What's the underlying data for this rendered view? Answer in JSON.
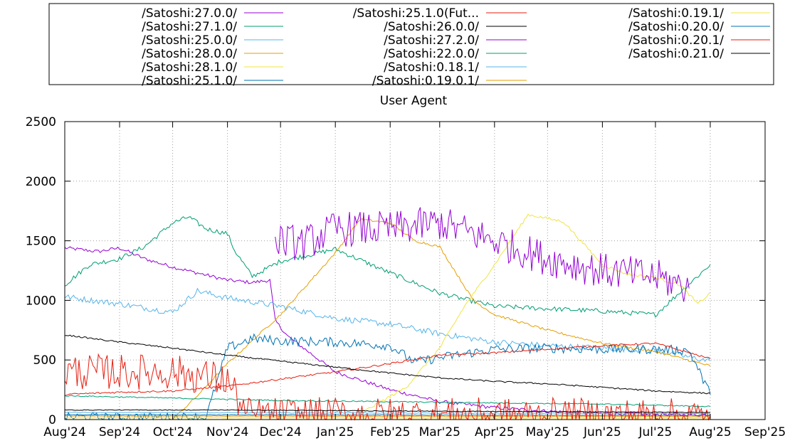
{
  "chart_data": {
    "type": "line",
    "title": "User Agent",
    "xlabel": "",
    "ylabel": "",
    "ylim": [
      0,
      2500
    ],
    "yticks": [
      0,
      500,
      1000,
      1500,
      2000,
      2500
    ],
    "xlim": [
      "2024-08-01",
      "2025-09-01"
    ],
    "xticks": [
      "Aug'24",
      "Sep'24",
      "Oct'24",
      "Nov'24",
      "Dec'24",
      "Jan'25",
      "Feb'25",
      "Mar'25",
      "Apr'25",
      "May'25",
      "Jun'25",
      "Jul'25",
      "Aug'25",
      "Sep'25"
    ],
    "grid": true,
    "legend_position": "top",
    "series": [
      {
        "name": "/Satoshi:27.0.0/",
        "color": "#9400d3",
        "jitter": 15,
        "points": [
          [
            "2024-08-01",
            1440
          ],
          [
            "2024-08-20",
            1410
          ],
          [
            "2024-09-01",
            1440
          ],
          [
            "2024-09-15",
            1350
          ],
          [
            "2024-10-01",
            1280
          ],
          [
            "2024-10-15",
            1230
          ],
          [
            "2024-11-01",
            1170
          ],
          [
            "2024-11-15",
            1150
          ],
          [
            "2024-11-25",
            1170
          ],
          [
            "2024-11-28",
            830
          ],
          [
            "2024-12-05",
            700
          ],
          [
            "2025-01-01",
            400
          ],
          [
            "2025-02-01",
            250
          ],
          [
            "2025-03-01",
            150
          ],
          [
            "2025-04-01",
            100
          ],
          [
            "2025-05-01",
            70
          ],
          [
            "2025-06-01",
            50
          ],
          [
            "2025-08-01",
            40
          ]
        ]
      },
      {
        "name": "/Satoshi:27.1.0/",
        "color": "#009e73",
        "jitter": 20,
        "points": [
          [
            "2024-08-01",
            1130
          ],
          [
            "2024-08-15",
            1300
          ],
          [
            "2024-09-01",
            1350
          ],
          [
            "2024-09-15",
            1450
          ],
          [
            "2024-10-01",
            1650
          ],
          [
            "2024-10-10",
            1700
          ],
          [
            "2024-10-20",
            1600
          ],
          [
            "2024-11-01",
            1560
          ],
          [
            "2024-11-05",
            1420
          ],
          [
            "2024-11-15",
            1200
          ],
          [
            "2024-12-01",
            1330
          ],
          [
            "2025-01-01",
            1430
          ],
          [
            "2025-02-01",
            1230
          ],
          [
            "2025-03-01",
            1060
          ],
          [
            "2025-04-01",
            950
          ],
          [
            "2025-05-01",
            930
          ],
          [
            "2025-06-01",
            910
          ],
          [
            "2025-07-01",
            880
          ],
          [
            "2025-08-01",
            1300
          ]
        ]
      },
      {
        "name": "/Satoshi:25.0.0/",
        "color": "#56b4e9",
        "jitter": 25,
        "points": [
          [
            "2024-08-01",
            1030
          ],
          [
            "2024-09-01",
            970
          ],
          [
            "2024-10-01",
            900
          ],
          [
            "2024-10-15",
            1080
          ],
          [
            "2024-11-01",
            1020
          ],
          [
            "2024-12-01",
            950
          ],
          [
            "2025-01-01",
            850
          ],
          [
            "2025-02-01",
            800
          ],
          [
            "2025-03-01",
            720
          ],
          [
            "2025-04-01",
            650
          ],
          [
            "2025-05-01",
            620
          ],
          [
            "2025-06-01",
            600
          ],
          [
            "2025-07-01",
            580
          ],
          [
            "2025-08-01",
            490
          ]
        ]
      },
      {
        "name": "/Satoshi:28.0.0/",
        "color": "#e69f00",
        "jitter": 10,
        "points": [
          [
            "2024-10-01",
            0
          ],
          [
            "2024-10-15",
            200
          ],
          [
            "2024-11-01",
            470
          ],
          [
            "2024-12-01",
            880
          ],
          [
            "2025-01-01",
            1400
          ],
          [
            "2025-01-15",
            1680
          ],
          [
            "2025-02-01",
            1650
          ],
          [
            "2025-02-15",
            1500
          ],
          [
            "2025-03-01",
            1450
          ],
          [
            "2025-03-20",
            1000
          ],
          [
            "2025-04-01",
            880
          ],
          [
            "2025-05-01",
            750
          ],
          [
            "2025-06-01",
            640
          ],
          [
            "2025-07-01",
            570
          ],
          [
            "2025-08-01",
            450
          ]
        ]
      },
      {
        "name": "/Satoshi:28.1.0/",
        "color": "#f0e442",
        "jitter": 12,
        "points": [
          [
            "2025-01-15",
            50
          ],
          [
            "2025-02-10",
            270
          ],
          [
            "2025-03-01",
            600
          ],
          [
            "2025-03-15",
            950
          ],
          [
            "2025-04-01",
            1300
          ],
          [
            "2025-04-20",
            1720
          ],
          [
            "2025-05-10",
            1660
          ],
          [
            "2025-06-01",
            1300
          ],
          [
            "2025-06-15",
            1220
          ],
          [
            "2025-07-01",
            1190
          ],
          [
            "2025-07-15",
            1130
          ],
          [
            "2025-07-25",
            970
          ],
          [
            "2025-08-01",
            1060
          ]
        ]
      },
      {
        "name": "/Satoshi:25.1.0/",
        "color": "#0072b2",
        "jitter": 40,
        "points": [
          [
            "2024-08-01",
            20
          ],
          [
            "2024-10-20",
            20
          ],
          [
            "2024-11-01",
            600
          ],
          [
            "2024-11-15",
            680
          ],
          [
            "2024-12-01",
            660
          ],
          [
            "2025-01-01",
            650
          ],
          [
            "2025-02-01",
            620
          ],
          [
            "2025-02-15",
            480
          ],
          [
            "2025-03-01",
            520
          ],
          [
            "2025-04-01",
            590
          ],
          [
            "2025-05-01",
            600
          ],
          [
            "2025-06-01",
            590
          ],
          [
            "2025-07-01",
            590
          ],
          [
            "2025-07-20",
            580
          ],
          [
            "2025-08-01",
            210
          ]
        ]
      },
      {
        "name": "/Satoshi:25.1.0(Fut...",
        "color": "#e51e10",
        "jitter": 8,
        "points": [
          [
            "2024-08-01",
            210
          ],
          [
            "2024-09-01",
            230
          ],
          [
            "2024-10-01",
            240
          ],
          [
            "2024-11-01",
            280
          ],
          [
            "2024-12-01",
            340
          ],
          [
            "2025-01-01",
            400
          ],
          [
            "2025-02-01",
            470
          ],
          [
            "2025-03-01",
            540
          ],
          [
            "2025-04-01",
            560
          ],
          [
            "2025-05-01",
            590
          ],
          [
            "2025-06-01",
            620
          ],
          [
            "2025-07-01",
            640
          ],
          [
            "2025-08-01",
            510
          ]
        ]
      },
      {
        "name": "/Satoshi:26.0.0/",
        "color": "#000000",
        "jitter": 6,
        "points": [
          [
            "2024-08-01",
            710
          ],
          [
            "2024-09-01",
            650
          ],
          [
            "2024-10-01",
            600
          ],
          [
            "2024-11-01",
            540
          ],
          [
            "2024-12-01",
            490
          ],
          [
            "2025-01-01",
            440
          ],
          [
            "2025-02-01",
            390
          ],
          [
            "2025-03-01",
            350
          ],
          [
            "2025-04-01",
            320
          ],
          [
            "2025-05-01",
            300
          ],
          [
            "2025-06-01",
            270
          ],
          [
            "2025-07-01",
            240
          ],
          [
            "2025-08-01",
            220
          ]
        ]
      },
      {
        "name": "/Satoshi:27.2.0/",
        "color": "#9400d3",
        "jitter": 150,
        "points": [
          [
            "2024-11-28",
            1500
          ],
          [
            "2024-12-15",
            1480
          ],
          [
            "2025-01-01",
            1600
          ],
          [
            "2025-02-01",
            1600
          ],
          [
            "2025-03-01",
            1650
          ],
          [
            "2025-04-01",
            1500
          ],
          [
            "2025-05-01",
            1350
          ],
          [
            "2025-06-01",
            1250
          ],
          [
            "2025-07-01",
            1200
          ],
          [
            "2025-07-20",
            1100
          ]
        ]
      },
      {
        "name": "/Satoshi:22.0.0/",
        "color": "#009e73",
        "jitter": 5,
        "points": [
          [
            "2024-08-01",
            200
          ],
          [
            "2024-10-01",
            180
          ],
          [
            "2024-12-01",
            160
          ],
          [
            "2025-02-01",
            150
          ],
          [
            "2025-04-01",
            140
          ],
          [
            "2025-06-01",
            130
          ],
          [
            "2025-08-01",
            110
          ]
        ]
      },
      {
        "name": "/Satoshi:0.18.1/",
        "color": "#56b4e9",
        "jitter": 3,
        "points": [
          [
            "2024-08-01",
            60
          ],
          [
            "2025-01-01",
            55
          ],
          [
            "2025-08-01",
            50
          ]
        ]
      },
      {
        "name": "/Satoshi:0.19.0.1/",
        "color": "#e69f00",
        "jitter": 2,
        "points": [
          [
            "2024-08-01",
            30
          ],
          [
            "2025-01-01",
            28
          ],
          [
            "2025-08-01",
            25
          ]
        ]
      },
      {
        "name": "/Satoshi:0.19.1/",
        "color": "#f0e442",
        "jitter": 2,
        "points": [
          [
            "2024-08-01",
            15
          ],
          [
            "2025-01-01",
            14
          ],
          [
            "2025-08-01",
            12
          ]
        ]
      },
      {
        "name": "/Satoshi:0.20.0/",
        "color": "#0072b2",
        "jitter": 2,
        "points": [
          [
            "2024-08-01",
            40
          ],
          [
            "2025-01-01",
            38
          ],
          [
            "2025-08-01",
            35
          ]
        ]
      },
      {
        "name": "/Satoshi:0.20.1/",
        "color": "#e51e10",
        "jitter": 150,
        "points": [
          [
            "2024-08-01",
            400
          ],
          [
            "2024-09-01",
            400
          ],
          [
            "2024-10-01",
            400
          ],
          [
            "2024-11-01",
            330
          ],
          [
            "2024-11-10",
            90
          ],
          [
            "2024-11-11",
            40
          ],
          [
            "2025-08-01",
            30
          ]
        ]
      },
      {
        "name": "/Satoshi:0.21.0/",
        "color": "#000000",
        "jitter": 3,
        "points": [
          [
            "2024-08-01",
            80
          ],
          [
            "2024-11-01",
            80
          ],
          [
            "2025-03-01",
            70
          ],
          [
            "2025-08-01",
            60
          ]
        ]
      }
    ]
  }
}
